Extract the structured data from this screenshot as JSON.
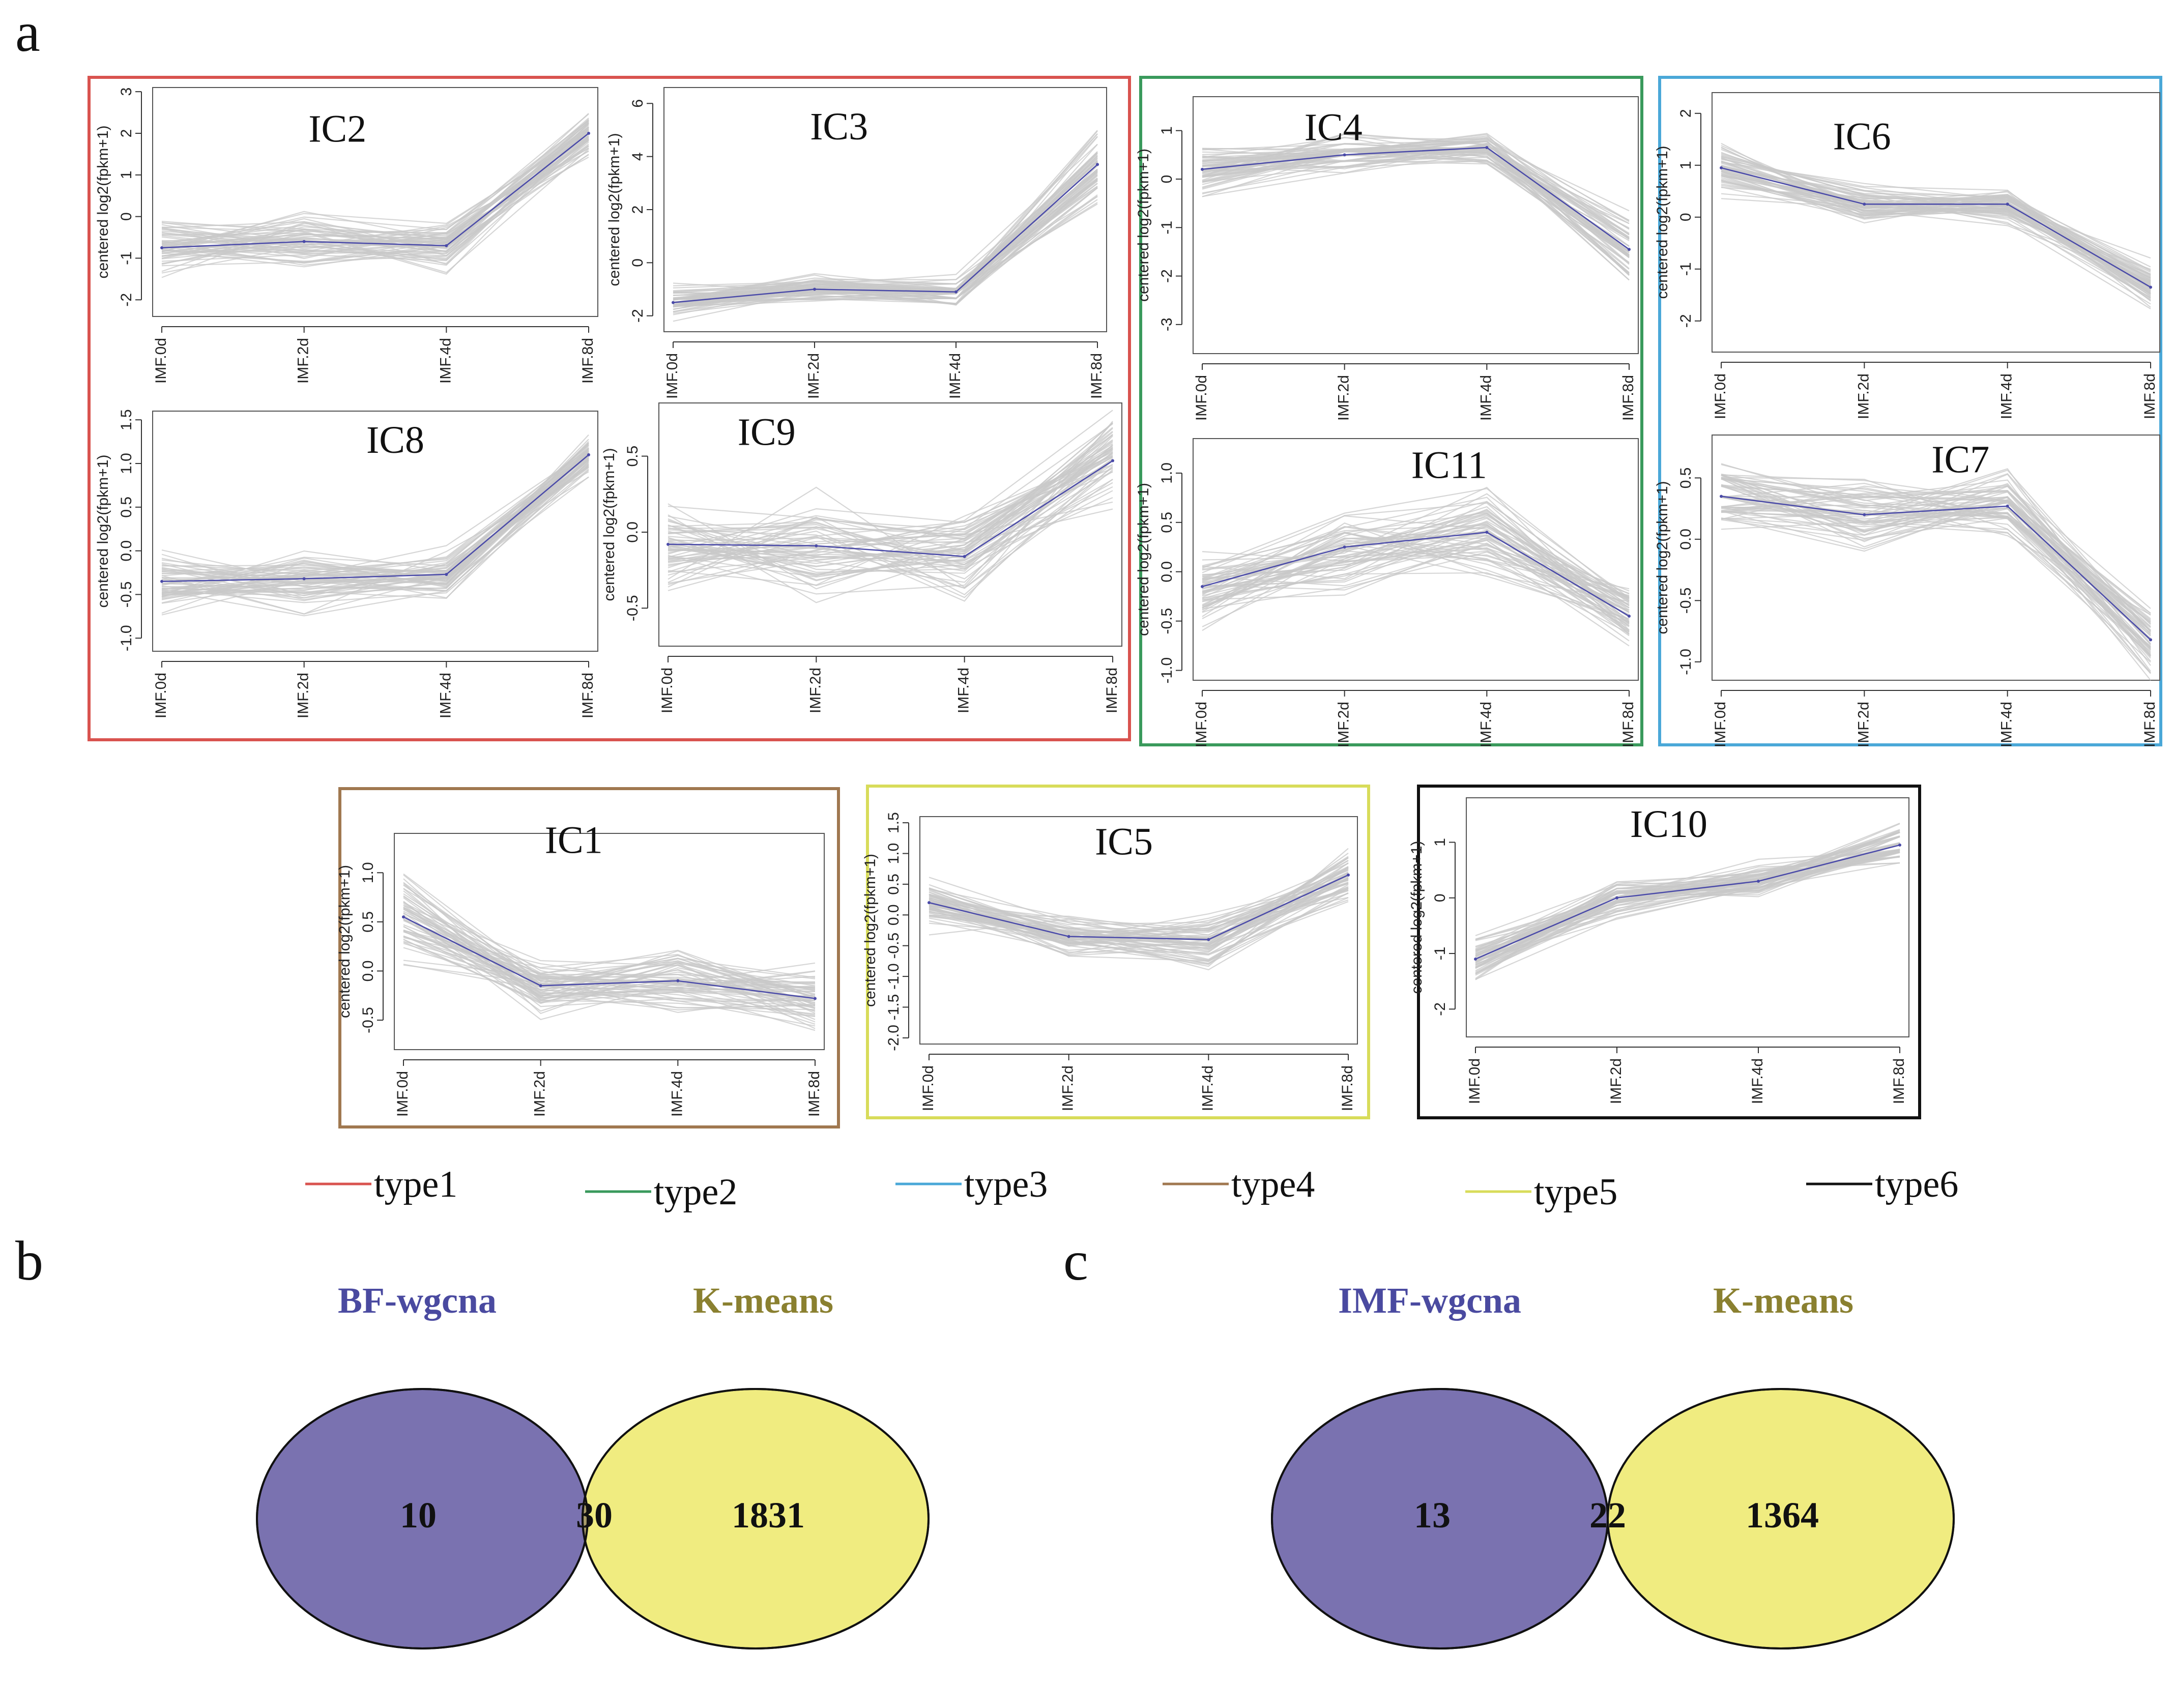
{
  "panel_letters": {
    "a": "a",
    "b": "b",
    "c": "c"
  },
  "legend": [
    {
      "label": "type1",
      "color": "#d9534f"
    },
    {
      "label": "type2",
      "color": "#3a9a5c"
    },
    {
      "label": "type3",
      "color": "#4aa8d8"
    },
    {
      "label": "type4",
      "color": "#a07850"
    },
    {
      "label": "type5",
      "color": "#d8dc5a"
    },
    {
      "label": "type6",
      "color": "#111111"
    }
  ],
  "colors": {
    "background_lines": "#c8c8c8",
    "centroid_line": "#4a4aa8",
    "venn_left": "#7a72b0",
    "venn_right": "#f0ec80",
    "venn_overlap": "#a89c6a",
    "venn_left_title": "#4a4aa0",
    "venn_right_title": "#8a8030"
  },
  "chart_data": [
    {
      "type": "line",
      "id": "IC2",
      "title": "IC2",
      "group": "type1",
      "ylabel": "centered log2(fpkm+1)",
      "categories": [
        "IMF.0d",
        "IMF.2d",
        "IMF.4d",
        "IMF.8d"
      ],
      "ylim": [
        -2.4,
        3.1
      ],
      "yticks": [
        -2,
        -1,
        0,
        1,
        2,
        3
      ],
      "series": [
        {
          "values": [
            -0.75,
            -0.6,
            -0.7,
            2.0
          ]
        }
      ],
      "spread": [
        0.7,
        0.7,
        0.6,
        0.6
      ]
    },
    {
      "type": "line",
      "id": "IC3",
      "title": "IC3",
      "group": "type1",
      "ylabel": "centered log2(fpkm+1)",
      "categories": [
        "IMF.0d",
        "IMF.2d",
        "IMF.4d",
        "IMF.8d"
      ],
      "ylim": [
        -2.6,
        6.6
      ],
      "yticks": [
        -2,
        0,
        2,
        4,
        6
      ],
      "series": [
        {
          "values": [
            -1.5,
            -1.0,
            -1.1,
            3.7
          ]
        }
      ],
      "spread": [
        0.6,
        0.6,
        0.6,
        1.4
      ]
    },
    {
      "type": "line",
      "id": "IC8",
      "title": "IC8",
      "group": "type1",
      "ylabel": "centered log2(fpkm+1)",
      "categories": [
        "IMF.0d",
        "IMF.2d",
        "IMF.4d",
        "IMF.8d"
      ],
      "ylim": [
        -1.15,
        1.6
      ],
      "yticks": [
        -1.0,
        -0.5,
        0.0,
        0.5,
        1.0,
        1.5
      ],
      "series": [
        {
          "values": [
            -0.35,
            -0.32,
            -0.27,
            1.1
          ]
        }
      ],
      "spread": [
        0.35,
        0.35,
        0.3,
        0.25
      ]
    },
    {
      "type": "line",
      "id": "IC9",
      "title": "IC9",
      "group": "type1",
      "ylabel": "centered log2(fpkm+1)",
      "categories": [
        "IMF.0d",
        "IMF.2d",
        "IMF.4d",
        "IMF.8d"
      ],
      "ylim": [
        -0.75,
        0.85
      ],
      "yticks": [
        -0.5,
        0.0,
        0.5
      ],
      "series": [
        {
          "values": [
            -0.08,
            -0.09,
            -0.16,
            0.47
          ]
        }
      ],
      "spread": [
        0.35,
        0.35,
        0.3,
        0.3
      ]
    },
    {
      "type": "line",
      "id": "IC4",
      "title": "IC4",
      "group": "type2",
      "ylabel": "centered log2(fpkm+1)",
      "categories": [
        "IMF.0d",
        "IMF.2d",
        "IMF.4d",
        "IMF.8d"
      ],
      "ylim": [
        -3.6,
        1.7
      ],
      "yticks": [
        -3,
        -2,
        -1,
        0,
        1
      ],
      "series": [
        {
          "values": [
            0.2,
            0.5,
            0.65,
            -1.45
          ]
        }
      ],
      "spread": [
        0.5,
        0.4,
        0.35,
        0.8
      ]
    },
    {
      "type": "line",
      "id": "IC11",
      "title": "IC11",
      "group": "type2",
      "ylabel": "centered log2(fpkm+1)",
      "categories": [
        "IMF.0d",
        "IMF.2d",
        "IMF.4d",
        "IMF.8d"
      ],
      "ylim": [
        -1.1,
        1.35
      ],
      "yticks": [
        -1.0,
        -0.5,
        0.0,
        0.5,
        1.0
      ],
      "series": [
        {
          "values": [
            -0.15,
            0.25,
            0.4,
            -0.45
          ]
        }
      ],
      "spread": [
        0.4,
        0.45,
        0.45,
        0.35
      ]
    },
    {
      "type": "line",
      "id": "IC6",
      "title": "IC6",
      "group": "type3",
      "ylabel": "centered log2(fpkm+1)",
      "categories": [
        "IMF.0d",
        "IMF.2d",
        "IMF.4d",
        "IMF.8d"
      ],
      "ylim": [
        -2.6,
        2.4
      ],
      "yticks": [
        -2,
        -1,
        0,
        1,
        2
      ],
      "series": [
        {
          "values": [
            0.95,
            0.25,
            0.25,
            -1.35
          ]
        }
      ],
      "spread": [
        0.5,
        0.4,
        0.35,
        0.45
      ]
    },
    {
      "type": "line",
      "id": "IC7",
      "title": "IC7",
      "group": "type3",
      "ylabel": "centered log2(fpkm+1)",
      "categories": [
        "IMF.0d",
        "IMF.2d",
        "IMF.4d",
        "IMF.8d"
      ],
      "ylim": [
        -1.15,
        0.85
      ],
      "yticks": [
        -1.0,
        -0.5,
        0.0,
        0.5
      ],
      "series": [
        {
          "values": [
            0.35,
            0.2,
            0.27,
            -0.82
          ]
        }
      ],
      "spread": [
        0.3,
        0.3,
        0.3,
        0.3
      ]
    },
    {
      "type": "line",
      "id": "IC1",
      "title": "IC1",
      "group": "type4",
      "ylabel": "centered log2(fpkm+1)",
      "categories": [
        "IMF.0d",
        "IMF.2d",
        "IMF.4d",
        "IMF.8d"
      ],
      "ylim": [
        -0.8,
        1.4
      ],
      "yticks": [
        -0.5,
        0.0,
        0.5,
        1.0
      ],
      "series": [
        {
          "values": [
            0.55,
            -0.15,
            -0.1,
            -0.28
          ]
        }
      ],
      "spread": [
        0.45,
        0.35,
        0.35,
        0.35
      ]
    },
    {
      "type": "line",
      "id": "IC5",
      "title": "IC5",
      "group": "type5",
      "ylabel": "centered log2(fpkm+1)",
      "categories": [
        "IMF.0d",
        "IMF.2d",
        "IMF.4d",
        "IMF.8d"
      ],
      "ylim": [
        -2.1,
        1.6
      ],
      "yticks": [
        -2.0,
        -1.5,
        -1.0,
        -0.5,
        0.0,
        0.5,
        1.0,
        1.5
      ],
      "series": [
        {
          "values": [
            0.2,
            -0.35,
            -0.4,
            0.65
          ]
        }
      ],
      "spread": [
        0.45,
        0.35,
        0.5,
        0.45
      ]
    },
    {
      "type": "line",
      "id": "IC10",
      "title": "IC10",
      "group": "type6",
      "ylabel": "centered log2(fpkm+1)",
      "categories": [
        "IMF.0d",
        "IMF.2d",
        "IMF.4d",
        "IMF.8d"
      ],
      "ylim": [
        -2.5,
        1.8
      ],
      "yticks": [
        -2,
        -1,
        0,
        1
      ],
      "series": [
        {
          "values": [
            -1.1,
            0.0,
            0.3,
            0.95
          ]
        }
      ],
      "spread": [
        0.45,
        0.35,
        0.35,
        0.4
      ]
    }
  ],
  "venn": [
    {
      "id": "b",
      "left_title": "BF-wgcna",
      "right_title": "K-means",
      "left_only": "10",
      "overlap": "30",
      "right_only": "1831"
    },
    {
      "id": "c",
      "left_title": "IMF-wgcna",
      "right_title": "K-means",
      "left_only": "13",
      "overlap": "22",
      "right_only": "1364"
    }
  ]
}
